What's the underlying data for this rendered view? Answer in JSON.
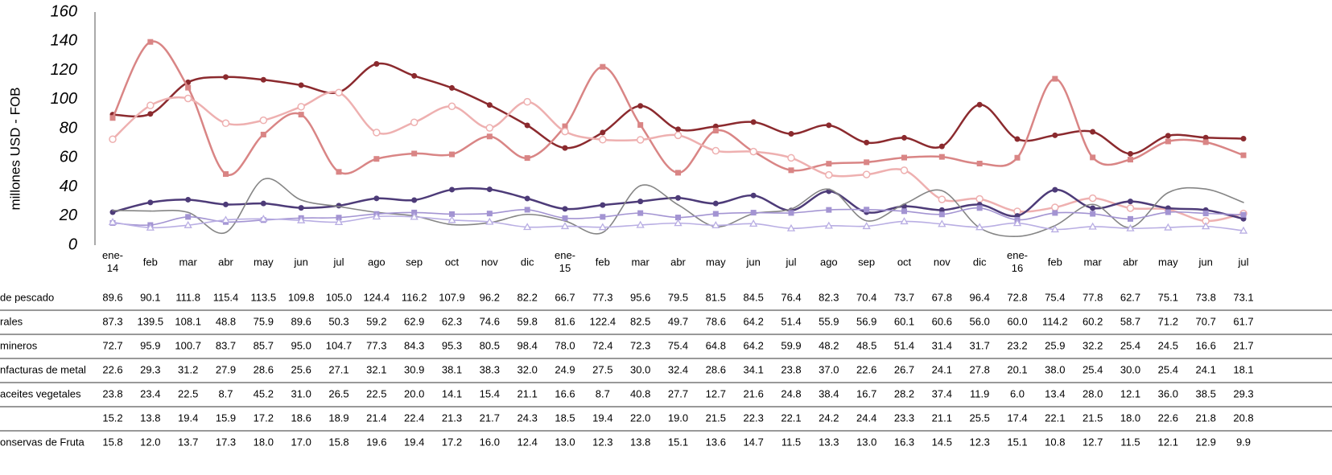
{
  "chart_data": {
    "type": "line",
    "y_label": "millones USD - FOB",
    "ylim": [
      0,
      160
    ],
    "yticks": [
      0,
      20,
      40,
      60,
      80,
      100,
      120,
      140,
      160
    ],
    "categories": [
      "ene-14",
      "feb",
      "mar",
      "abr",
      "may",
      "jun",
      "jul",
      "ago",
      "sep",
      "oct",
      "nov",
      "dic",
      "ene-15",
      "feb",
      "mar",
      "abr",
      "may",
      "jun",
      "jul",
      "ago",
      "sep",
      "oct",
      "nov",
      "dic",
      "ene-16",
      "feb",
      "mar",
      "abr",
      "may",
      "jun",
      "jul"
    ],
    "series": [
      {
        "name": "de pescado",
        "color": "#8b2a2e",
        "marker": "circle",
        "values": [
          89.6,
          90.1,
          111.8,
          115.4,
          113.5,
          109.8,
          105.0,
          124.4,
          116.2,
          107.9,
          96.2,
          82.2,
          66.7,
          77.3,
          95.6,
          79.5,
          81.5,
          84.5,
          76.4,
          82.3,
          70.4,
          73.7,
          67.8,
          96.4,
          72.8,
          75.4,
          77.8,
          62.7,
          75.1,
          73.8,
          73.1
        ],
        "value_labels": [
          "89.6",
          "90.1",
          "111.8",
          "115.4",
          "113.5",
          "109.8",
          "105.0",
          "124.4",
          "116.2",
          "107.9",
          "96.2",
          "82.2",
          "66.7",
          "77.3",
          "95.6",
          "79.5",
          "81.5",
          "84.5",
          "76.4",
          "82.3",
          "70.4",
          "73.7",
          "67.8",
          "96.4",
          "72.8",
          "75.4",
          "77.8",
          "62.7",
          "75.1",
          "73.8",
          "73.1"
        ]
      },
      {
        "name": "rales",
        "color": "#d98585",
        "marker": "square",
        "values": [
          87.3,
          139.5,
          108.1,
          48.8,
          75.9,
          89.6,
          50.3,
          59.2,
          62.9,
          62.3,
          74.6,
          59.8,
          81.6,
          122.4,
          82.5,
          49.7,
          78.6,
          64.2,
          51.4,
          55.9,
          56.9,
          60.1,
          60.6,
          56.0,
          60.0,
          114.2,
          60.2,
          58.7,
          71.2,
          70.7,
          61.7
        ],
        "value_labels": [
          "87.3",
          "139.5",
          "108.1",
          "48.8",
          "75.9",
          "89.6",
          "50.3",
          "59.2",
          "62.9",
          "62.3",
          "74.6",
          "59.8",
          "81.6",
          "122.4",
          "82.5",
          "49.7",
          "78.6",
          "64.2",
          "51.4",
          "55.9",
          "56.9",
          "60.1",
          "60.6",
          "56.0",
          "60.0",
          "114.2",
          "60.2",
          "58.7",
          "71.2",
          "70.7",
          "61.7"
        ]
      },
      {
        "name": "mineros",
        "color": "#eeb0b0",
        "marker": "ring",
        "values": [
          72.7,
          95.9,
          100.7,
          83.7,
          85.7,
          95.0,
          104.7,
          77.3,
          84.3,
          95.3,
          80.5,
          98.4,
          78.0,
          72.4,
          72.3,
          75.4,
          64.8,
          64.2,
          59.9,
          48.2,
          48.5,
          51.4,
          31.4,
          31.7,
          23.2,
          25.9,
          32.2,
          25.4,
          24.5,
          16.6,
          21.7
        ],
        "value_labels": [
          "72.7",
          "95.9",
          "100.7",
          "83.7",
          "85.7",
          "95.0",
          "104.7",
          "77.3",
          "84.3",
          "95.3",
          "80.5",
          "98.4",
          "78.0",
          "72.4",
          "72.3",
          "75.4",
          "64.8",
          "64.2",
          "59.9",
          "48.2",
          "48.5",
          "51.4",
          "31.4",
          "31.7",
          "23.2",
          "25.9",
          "32.2",
          "25.4",
          "24.5",
          "16.6",
          "21.7"
        ]
      },
      {
        "name": "nfacturas de metal",
        "color": "#4d3b78",
        "marker": "circle",
        "values": [
          22.6,
          29.3,
          31.2,
          27.9,
          28.6,
          25.6,
          27.1,
          32.1,
          30.9,
          38.1,
          38.3,
          32.0,
          24.9,
          27.5,
          30.0,
          32.4,
          28.6,
          34.1,
          23.8,
          37.0,
          22.6,
          26.7,
          24.1,
          27.8,
          20.1,
          38.0,
          25.4,
          30.0,
          25.4,
          24.1,
          18.1
        ],
        "value_labels": [
          "22.6",
          "29.3",
          "31.2",
          "27.9",
          "28.6",
          "25.6",
          "27.1",
          "32.1",
          "30.9",
          "38.1",
          "38.3",
          "32.0",
          "24.9",
          "27.5",
          "30.0",
          "32.4",
          "28.6",
          "34.1",
          "23.8",
          "37.0",
          "22.6",
          "26.7",
          "24.1",
          "27.8",
          "20.1",
          "38.0",
          "25.4",
          "30.0",
          "25.4",
          "24.1",
          "18.1"
        ]
      },
      {
        "name": "aceites vegetales",
        "color": "#858585",
        "marker": "none",
        "values": [
          23.8,
          23.4,
          22.5,
          8.7,
          45.2,
          31.0,
          26.5,
          22.5,
          20.0,
          14.1,
          15.4,
          21.1,
          16.6,
          8.7,
          40.8,
          27.7,
          12.7,
          21.6,
          24.8,
          38.4,
          16.7,
          28.2,
          37.4,
          11.9,
          6.0,
          13.4,
          28.0,
          12.1,
          36.0,
          38.5,
          29.3
        ],
        "value_labels": [
          "23.8",
          "23.4",
          "22.5",
          "8.7",
          "45.2",
          "31.0",
          "26.5",
          "22.5",
          "20.0",
          "14.1",
          "15.4",
          "21.1",
          "16.6",
          "8.7",
          "40.8",
          "27.7",
          "12.7",
          "21.6",
          "24.8",
          "38.4",
          "16.7",
          "28.2",
          "37.4",
          "11.9",
          "6.0",
          "13.4",
          "28.0",
          "12.1",
          "36.0",
          "38.5",
          "29.3"
        ]
      },
      {
        "name": null,
        "color": "#a394d2",
        "marker": "square",
        "values": [
          15.2,
          13.8,
          19.4,
          15.9,
          17.2,
          18.6,
          18.9,
          21.4,
          22.4,
          21.3,
          21.7,
          24.3,
          18.5,
          19.4,
          22.0,
          19.0,
          21.5,
          22.3,
          22.1,
          24.2,
          24.4,
          23.3,
          21.1,
          25.5,
          17.4,
          22.1,
          21.5,
          18.0,
          22.6,
          21.8,
          20.8
        ],
        "value_labels": [
          "15.2",
          "13.8",
          "19.4",
          "15.9",
          "17.2",
          "18.6",
          "18.9",
          "21.4",
          "22.4",
          "21.3",
          "21.7",
          "24.3",
          "18.5",
          "19.4",
          "22.0",
          "19.0",
          "21.5",
          "22.3",
          "22.1",
          "24.2",
          "24.4",
          "23.3",
          "21.1",
          "25.5",
          "17.4",
          "22.1",
          "21.5",
          "18.0",
          "22.6",
          "21.8",
          "20.8"
        ]
      },
      {
        "name": "onservas de Fruta",
        "color": "#b9aee3",
        "marker": "triangle",
        "values": [
          15.8,
          12.0,
          13.7,
          17.3,
          18.0,
          17.0,
          15.8,
          19.6,
          19.4,
          17.2,
          16.0,
          12.4,
          13.0,
          12.3,
          13.8,
          15.1,
          13.6,
          14.7,
          11.5,
          13.3,
          13.0,
          16.3,
          14.5,
          12.3,
          15.1,
          10.8,
          12.7,
          11.5,
          12.1,
          12.9,
          9.9
        ],
        "value_labels": [
          "15.8",
          "12.0",
          "13.7",
          "17.3",
          "18.0",
          "17.0",
          "15.8",
          "19.6",
          "19.4",
          "17.2",
          "16.0",
          "12.4",
          "13.0",
          "12.3",
          "13.8",
          "15.1",
          "13.6",
          "14.7",
          "11.5",
          "13.3",
          "13.0",
          "16.3",
          "14.5",
          "12.3",
          "15.1",
          "10.8",
          "12.7",
          "11.5",
          "12.1",
          "12.9",
          "9.9"
        ]
      }
    ]
  }
}
